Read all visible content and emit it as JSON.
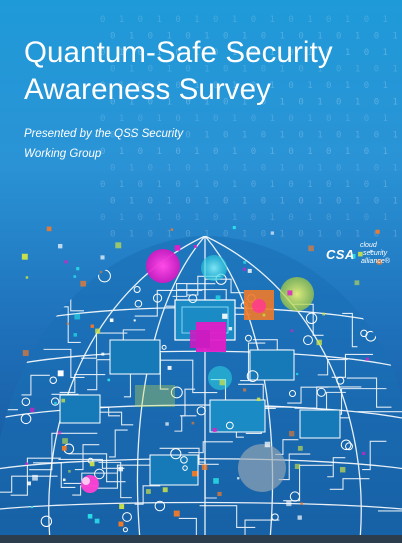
{
  "document": {
    "title_lines": [
      "Quantum-Safe Security",
      "Awareness Survey"
    ],
    "subtitle_lines": [
      "Presented by the QSS Security",
      "Working Group"
    ],
    "background_text": "0 1 0 1 0 1 0 1 0 1 0 1 0 1 0 1 0 1 0 1 0 1"
  },
  "logo": {
    "mark": "CSA",
    "words": [
      "cloud",
      "security",
      "alliance®"
    ]
  },
  "colors": {
    "background_top": "#1f9ad8",
    "background_bottom": "#154f93",
    "circuit_lines": "#ffffff",
    "magenta": "#e21cc8",
    "cyan": "#29e0e8",
    "orange": "#f07a2a",
    "yellow_green": "#c9e04a"
  }
}
